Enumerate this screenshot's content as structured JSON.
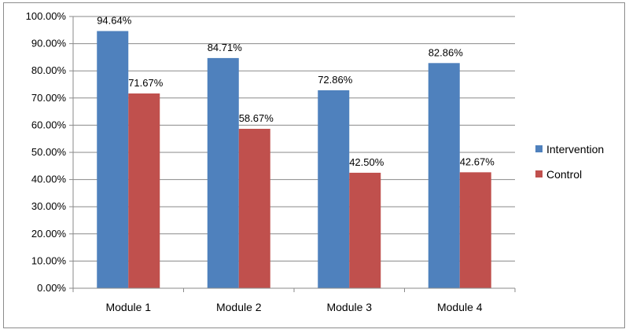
{
  "chart_data": {
    "type": "bar",
    "categories": [
      "Module 1",
      "Module 2",
      "Module 3",
      "Module 4"
    ],
    "series": [
      {
        "name": "Intervention",
        "values": [
          94.64,
          84.71,
          72.86,
          82.86
        ],
        "labels": [
          "94.64%",
          "84.71%",
          "72.86%",
          "82.86%"
        ],
        "color": "#4f81bd"
      },
      {
        "name": "Control",
        "values": [
          71.67,
          58.67,
          42.5,
          42.67
        ],
        "labels": [
          "71.67%",
          "58.67%",
          "42.50%",
          "42.67%"
        ],
        "color": "#c0504d"
      }
    ],
    "title": "",
    "xlabel": "",
    "ylabel": "",
    "ylim": [
      0,
      100
    ],
    "yticks": [
      0,
      10,
      20,
      30,
      40,
      50,
      60,
      70,
      80,
      90,
      100
    ],
    "ytick_labels": [
      "0.00%",
      "10.00%",
      "20.00%",
      "30.00%",
      "40.00%",
      "50.00%",
      "60.00%",
      "70.00%",
      "80.00%",
      "90.00%",
      "100.00%"
    ],
    "grid": true,
    "legend": "right"
  }
}
